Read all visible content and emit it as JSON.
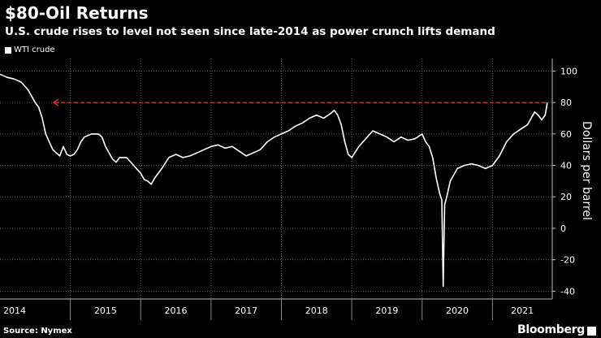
{
  "header": {
    "title": "$80-Oil Returns",
    "subtitle": "U.S. crude rises to level not seen since late-2014 as power crunch lifts demand"
  },
  "footer": {
    "source": "Source: Nymex",
    "brand": "Bloomberg",
    "brand_badge": "ᴹ"
  },
  "colors": {
    "background": "#000000",
    "series_line": "#ffffff",
    "reference_line": "#e3262d",
    "grid": "#5a5a5a"
  },
  "chart_data": {
    "type": "line",
    "title": "$80-Oil Returns",
    "subtitle": "U.S. crude rises to level not seen since late-2014 as power crunch lifts demand",
    "ylabel": "Dollars per barrel",
    "xlabel": "",
    "ylim": [
      -45,
      108
    ],
    "yticks": [
      100,
      80,
      60,
      40,
      20,
      0,
      -20,
      -40
    ],
    "xticks": [
      "2014",
      "2015",
      "2016",
      "2017",
      "2018",
      "2019",
      "2020",
      "2021"
    ],
    "grid": true,
    "legend_position": "top-left",
    "legend": [
      "WTI crude"
    ],
    "reference_line": {
      "y": 80,
      "style": "dashed",
      "arrow": "left",
      "from_x": 2014.75,
      "to_x": 2021.78
    },
    "series": [
      {
        "name": "WTI crude",
        "x": [
          2014.0,
          2014.1,
          2014.2,
          2014.3,
          2014.4,
          2014.5,
          2014.55,
          2014.6,
          2014.65,
          2014.7,
          2014.75,
          2014.8,
          2014.85,
          2014.9,
          2014.95,
          2015.0,
          2015.05,
          2015.1,
          2015.15,
          2015.2,
          2015.3,
          2015.4,
          2015.45,
          2015.5,
          2015.55,
          2015.6,
          2015.65,
          2015.7,
          2015.8,
          2015.9,
          2016.0,
          2016.05,
          2016.1,
          2016.15,
          2016.2,
          2016.3,
          2016.4,
          2016.5,
          2016.6,
          2016.7,
          2016.8,
          2016.9,
          2017.0,
          2017.1,
          2017.2,
          2017.3,
          2017.4,
          2017.5,
          2017.6,
          2017.7,
          2017.8,
          2017.9,
          2018.0,
          2018.1,
          2018.2,
          2018.3,
          2018.4,
          2018.5,
          2018.6,
          2018.7,
          2018.75,
          2018.8,
          2018.85,
          2018.9,
          2018.95,
          2019.0,
          2019.1,
          2019.2,
          2019.3,
          2019.4,
          2019.5,
          2019.6,
          2019.7,
          2019.8,
          2019.9,
          2020.0,
          2020.05,
          2020.1,
          2020.15,
          2020.2,
          2020.25,
          2020.28,
          2020.3,
          2020.32,
          2020.35,
          2020.4,
          2020.5,
          2020.6,
          2020.7,
          2020.8,
          2020.9,
          2021.0,
          2021.1,
          2021.2,
          2021.3,
          2021.4,
          2021.5,
          2021.55,
          2021.6,
          2021.65,
          2021.7,
          2021.75,
          2021.78
        ],
        "values": [
          98,
          96,
          95,
          93,
          88,
          80,
          77,
          70,
          60,
          55,
          50,
          48,
          46,
          52,
          47,
          46,
          47,
          50,
          55,
          58,
          60,
          60,
          58,
          52,
          48,
          44,
          42,
          45,
          45,
          40,
          35,
          31,
          30,
          28,
          32,
          38,
          45,
          47,
          45,
          46,
          48,
          50,
          52,
          53,
          51,
          52,
          49,
          46,
          48,
          50,
          55,
          58,
          60,
          62,
          65,
          67,
          70,
          72,
          70,
          73,
          75,
          72,
          66,
          55,
          47,
          45,
          52,
          57,
          62,
          60,
          58,
          55,
          58,
          56,
          57,
          60,
          55,
          52,
          45,
          32,
          22,
          18,
          -37,
          15,
          20,
          30,
          38,
          40,
          41,
          40,
          38,
          40,
          46,
          55,
          60,
          63,
          66,
          70,
          74,
          72,
          69,
          72,
          80
        ]
      }
    ]
  }
}
